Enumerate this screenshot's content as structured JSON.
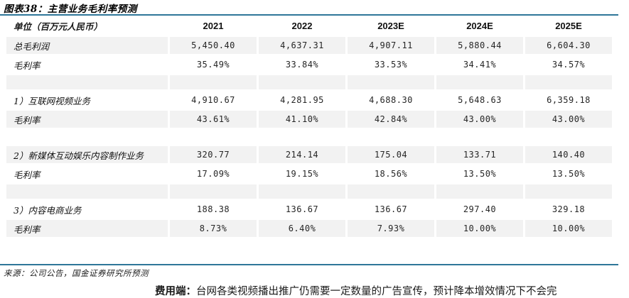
{
  "title": "图表38：主营业务毛利率预测",
  "table": {
    "unit_header": "单位（百万元人民币）",
    "year_headers": [
      "2021",
      "2022",
      "2023E",
      "2024E",
      "2025E"
    ],
    "rows": [
      {
        "type": "data",
        "shaded": true,
        "label": "总毛利润",
        "values": [
          "5,450.40",
          "4,637.31",
          "4,907.11",
          "5,880.44",
          "6,604.30"
        ]
      },
      {
        "type": "data",
        "shaded": false,
        "label": "毛利率",
        "values": [
          "35.49%",
          "33.84%",
          "33.53%",
          "34.41%",
          "34.57%"
        ]
      },
      {
        "type": "spacer",
        "shaded": true
      },
      {
        "type": "data",
        "shaded": false,
        "label": "1）互联网视频业务",
        "values": [
          "4,910.67",
          "4,281.95",
          "4,688.30",
          "5,648.63",
          "6,359.18"
        ]
      },
      {
        "type": "data",
        "shaded": true,
        "label": "毛利率",
        "values": [
          "43.61%",
          "41.10%",
          "42.84%",
          "43.00%",
          "43.00%"
        ]
      },
      {
        "type": "spacer",
        "shaded": false
      },
      {
        "type": "data",
        "shaded": true,
        "label": "2）新媒体互动娱乐内容制作业务",
        "values": [
          "320.77",
          "214.14",
          "175.04",
          "133.71",
          "140.40"
        ]
      },
      {
        "type": "data",
        "shaded": false,
        "label": "毛利率",
        "values": [
          "17.09%",
          "19.15%",
          "18.56%",
          "13.50%",
          "13.50%"
        ]
      },
      {
        "type": "spacer",
        "shaded": true
      },
      {
        "type": "data",
        "shaded": false,
        "label": "3）内容电商业务",
        "values": [
          "188.38",
          "136.67",
          "136.67",
          "297.40",
          "329.18"
        ]
      },
      {
        "type": "data",
        "shaded": true,
        "label": "毛利率",
        "values": [
          "8.73%",
          "6.40%",
          "7.93%",
          "10.00%",
          "10.00%"
        ]
      }
    ]
  },
  "source": "来源：公司公告，国金证券研究所预测",
  "footnote": {
    "lead": "费用端：",
    "text": "台网各类视频播出推广仍需要一定数量的广告宣传，预计降本增效情况下不会完"
  },
  "colors": {
    "rule_blue": "#2e7699",
    "row_stripe": "#f2f2f2"
  }
}
